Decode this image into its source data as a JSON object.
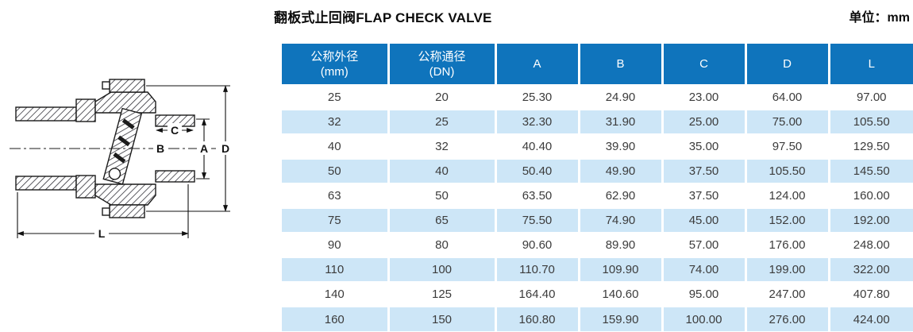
{
  "header": {
    "title": "翻板式止回阀FLAP CHECK VALVE",
    "unit": "单位：mm"
  },
  "colors": {
    "header_blue": "#0f74bc",
    "stripe_blue": "#cde6f7",
    "cell_text": "#3c3c3c",
    "line_ink": "#1b1b1b"
  },
  "drawing": {
    "name": "flap-check-valve-cross-section",
    "dims": {
      "a": "A",
      "b": "B",
      "c": "C",
      "d": "D",
      "l": "L"
    }
  },
  "table": {
    "columns": [
      {
        "line1": "公称外径",
        "line2": "(mm)"
      },
      {
        "line1": "公称通径",
        "line2": "(DN)"
      },
      {
        "line1": "A",
        "line2": ""
      },
      {
        "line1": "B",
        "line2": ""
      },
      {
        "line1": "C",
        "line2": ""
      },
      {
        "line1": "D",
        "line2": ""
      },
      {
        "line1": "L",
        "line2": ""
      }
    ],
    "rows": [
      [
        "25",
        "20",
        "25.30",
        "24.90",
        "23.00",
        "64.00",
        "97.00"
      ],
      [
        "32",
        "25",
        "32.30",
        "31.90",
        "25.00",
        "75.00",
        "105.50"
      ],
      [
        "40",
        "32",
        "40.40",
        "39.90",
        "35.00",
        "97.50",
        "129.50"
      ],
      [
        "50",
        "40",
        "50.40",
        "49.90",
        "37.50",
        "105.50",
        "145.50"
      ],
      [
        "63",
        "50",
        "63.50",
        "62.90",
        "37.50",
        "124.00",
        "160.00"
      ],
      [
        "75",
        "65",
        "75.50",
        "74.90",
        "45.00",
        "152.00",
        "192.00"
      ],
      [
        "90",
        "80",
        "90.60",
        "89.90",
        "57.00",
        "176.00",
        "248.00"
      ],
      [
        "110",
        "100",
        "110.70",
        "109.90",
        "74.00",
        "199.00",
        "322.00"
      ],
      [
        "140",
        "125",
        "164.40",
        "140.60",
        "95.00",
        "247.00",
        "407.80"
      ],
      [
        "160",
        "150",
        "160.80",
        "159.90",
        "100.00",
        "276.00",
        "424.00"
      ]
    ]
  }
}
